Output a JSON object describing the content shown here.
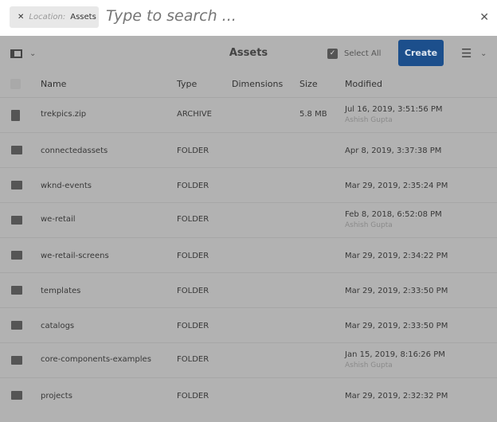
{
  "search": {
    "location_label": "Location:",
    "location_value": "Assets",
    "placeholder": "Type to search ..."
  },
  "toolbar": {
    "title": "Assets",
    "select_all": "Select All",
    "create": "Create"
  },
  "columns": [
    "Name",
    "Type",
    "Dimensions",
    "Size",
    "Modified"
  ],
  "rows": [
    {
      "name": "trekpics.zip",
      "type": "ARCHIVE",
      "size": "5.8 MB",
      "modified": "Jul 16, 2019, 3:51:56 PM",
      "by": "Ashish Gupta",
      "icon": "file-icon"
    },
    {
      "name": "connectedassets",
      "type": "FOLDER",
      "size": "",
      "modified": "Apr 8, 2019, 3:37:38 PM",
      "by": "",
      "icon": "folder-icon"
    },
    {
      "name": "wknd-events",
      "type": "FOLDER",
      "size": "",
      "modified": "Mar 29, 2019, 2:35:24 PM",
      "by": "",
      "icon": "folder-icon"
    },
    {
      "name": "we-retail",
      "type": "FOLDER",
      "size": "",
      "modified": "Feb 8, 2018, 6:52:08 PM",
      "by": "Ashish Gupta",
      "icon": "folder-icon"
    },
    {
      "name": "we-retail-screens",
      "type": "FOLDER",
      "size": "",
      "modified": "Mar 29, 2019, 2:34:22 PM",
      "by": "",
      "icon": "folder-icon"
    },
    {
      "name": "templates",
      "type": "FOLDER",
      "size": "",
      "modified": "Mar 29, 2019, 2:33:50 PM",
      "by": "",
      "icon": "folder-icon"
    },
    {
      "name": "catalogs",
      "type": "FOLDER",
      "size": "",
      "modified": "Mar 29, 2019, 2:33:50 PM",
      "by": "",
      "icon": "folder-icon"
    },
    {
      "name": "core-components-examples",
      "type": "FOLDER",
      "size": "",
      "modified": "Jan 15, 2019, 8:16:26 PM",
      "by": "Ashish Gupta",
      "icon": "folder-icon"
    },
    {
      "name": "projects",
      "type": "FOLDER",
      "size": "",
      "modified": "Mar 29, 2019, 2:32:32 PM",
      "by": "",
      "icon": "folder-icon"
    }
  ]
}
